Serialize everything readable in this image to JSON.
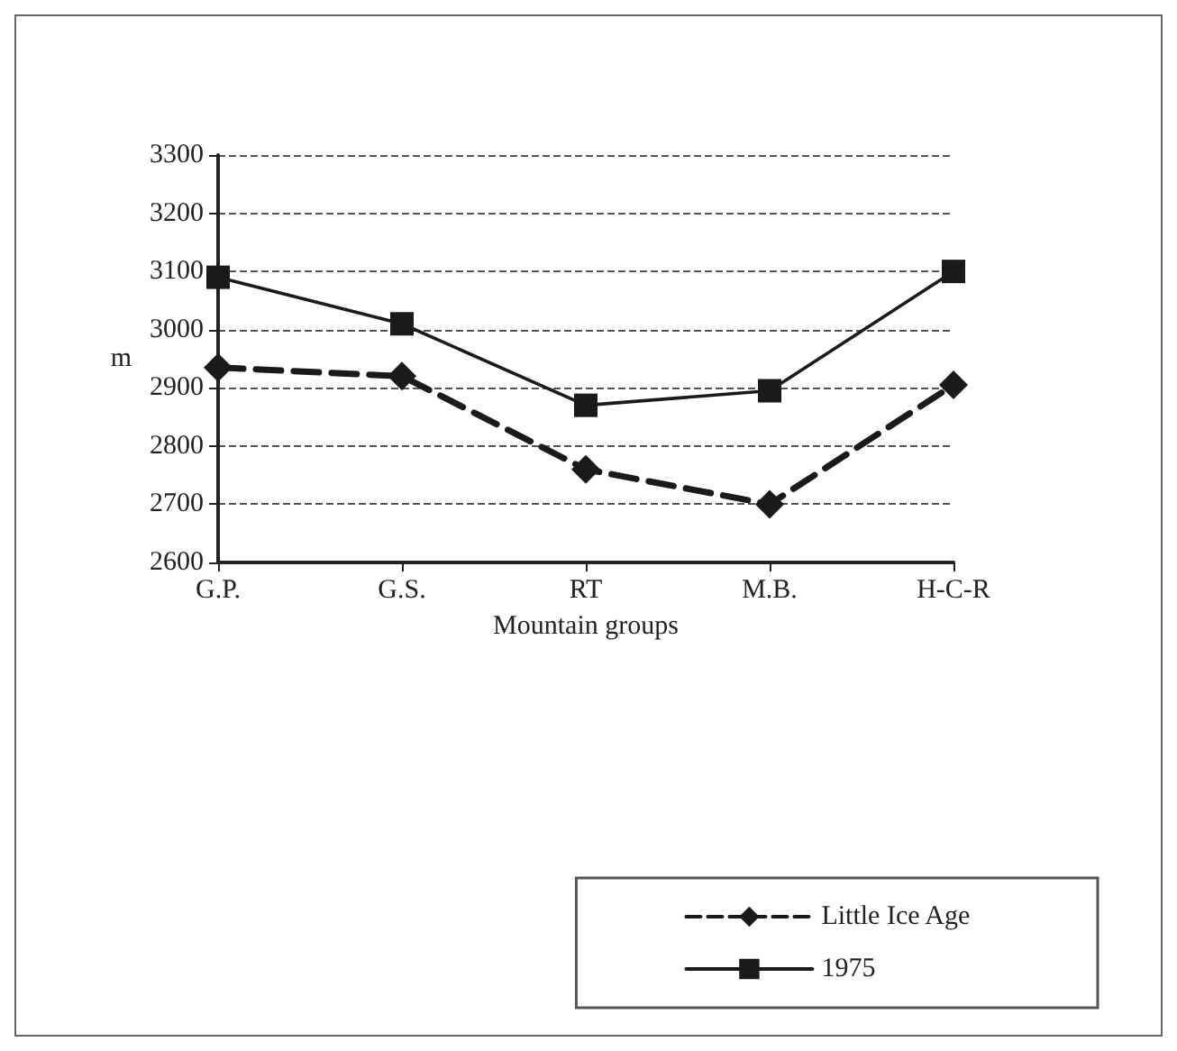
{
  "chart_data": {
    "type": "line",
    "xlabel": "Mountain groups",
    "ylabel": "m",
    "categories": [
      "G.P.",
      "G.S.",
      "RT",
      "M.B.",
      "H-C-R"
    ],
    "series": [
      {
        "name": "Little Ice Age",
        "color": "#1a1a1a",
        "marker": "diamond",
        "line_style": "dashed",
        "values": [
          2935,
          2920,
          2760,
          2700,
          2905
        ]
      },
      {
        "name": "1975",
        "color": "#1a1a1a",
        "marker": "square",
        "line_style": "solid",
        "values": [
          3090,
          3010,
          2870,
          2895,
          3100
        ]
      }
    ],
    "ylim": [
      2600,
      3300
    ],
    "yticks": [
      2600,
      2700,
      2800,
      2900,
      3000,
      3100,
      3200,
      3300
    ],
    "grid": "y",
    "legend": "bottom right"
  }
}
